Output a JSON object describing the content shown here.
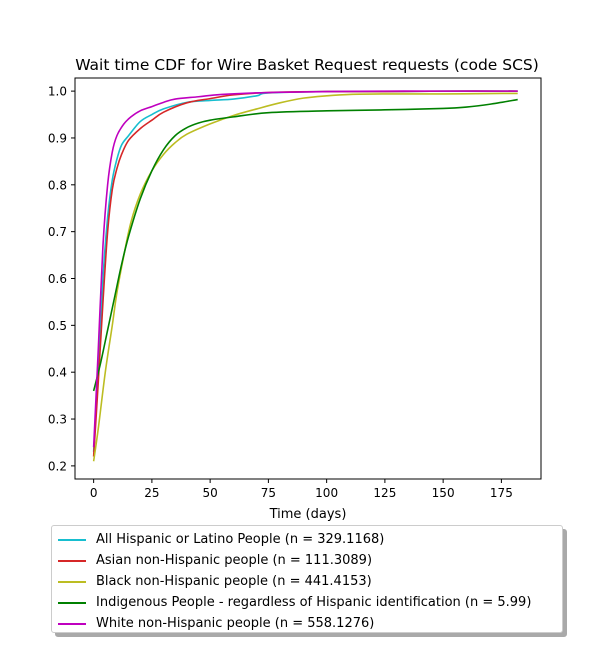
{
  "chart_data": {
    "type": "line",
    "title": "Wait time CDF for Wire Basket Request  requests (code SCS)",
    "xlabel": "Time (days)",
    "ylabel": "",
    "xlim": [
      -8,
      192
    ],
    "ylim": [
      0.172,
      1.028
    ],
    "xticks": [
      0,
      25,
      50,
      75,
      100,
      125,
      150,
      175
    ],
    "yticks": [
      0.2,
      0.3,
      0.4,
      0.5,
      0.6,
      0.7,
      0.8,
      0.9,
      1.0
    ],
    "xtick_labels": [
      "0",
      "25",
      "50",
      "75",
      "100",
      "125",
      "150",
      "175"
    ],
    "ytick_labels": [
      "0.2",
      "0.3",
      "0.4",
      "0.5",
      "0.6",
      "0.7",
      "0.8",
      "0.9",
      "1.0"
    ],
    "grid": false,
    "legend_position": "below plot",
    "series": [
      {
        "name": "All Hispanic or Latino People (n = 329.1168)",
        "color": "#17becf",
        "points": [
          [
            0,
            0.23
          ],
          [
            2,
            0.4
          ],
          [
            4,
            0.6
          ],
          [
            6,
            0.73
          ],
          [
            8,
            0.81
          ],
          [
            10,
            0.855
          ],
          [
            12,
            0.885
          ],
          [
            15,
            0.905
          ],
          [
            20,
            0.935
          ],
          [
            25,
            0.95
          ],
          [
            30,
            0.962
          ],
          [
            40,
            0.976
          ],
          [
            50,
            0.98
          ],
          [
            60,
            0.983
          ],
          [
            70,
            0.99
          ],
          [
            75,
            0.996
          ],
          [
            100,
            0.999
          ],
          [
            125,
            0.999
          ],
          [
            150,
            1.0
          ],
          [
            182,
            1.0
          ]
        ]
      },
      {
        "name": "Asian non-Hispanic people (n = 111.3089)",
        "color": "#d62728",
        "points": [
          [
            0,
            0.22
          ],
          [
            2,
            0.38
          ],
          [
            4,
            0.55
          ],
          [
            6,
            0.7
          ],
          [
            8,
            0.79
          ],
          [
            10,
            0.835
          ],
          [
            12,
            0.865
          ],
          [
            15,
            0.895
          ],
          [
            20,
            0.92
          ],
          [
            25,
            0.938
          ],
          [
            30,
            0.955
          ],
          [
            40,
            0.975
          ],
          [
            50,
            0.984
          ],
          [
            60,
            0.992
          ],
          [
            75,
            0.997
          ],
          [
            100,
            0.999
          ],
          [
            125,
            0.999
          ],
          [
            150,
            1.0
          ],
          [
            182,
            1.0
          ]
        ]
      },
      {
        "name": "Black non-Hispanic people (n = 441.4153)",
        "color": "#bcbd22",
        "points": [
          [
            0,
            0.21
          ],
          [
            2,
            0.28
          ],
          [
            5,
            0.4
          ],
          [
            8,
            0.5
          ],
          [
            10,
            0.57
          ],
          [
            13,
            0.65
          ],
          [
            16,
            0.72
          ],
          [
            20,
            0.78
          ],
          [
            25,
            0.83
          ],
          [
            30,
            0.865
          ],
          [
            35,
            0.89
          ],
          [
            40,
            0.908
          ],
          [
            50,
            0.93
          ],
          [
            60,
            0.948
          ],
          [
            70,
            0.962
          ],
          [
            80,
            0.975
          ],
          [
            90,
            0.985
          ],
          [
            100,
            0.99
          ],
          [
            110,
            0.993
          ],
          [
            125,
            0.994
          ],
          [
            150,
            0.994
          ],
          [
            175,
            0.995
          ],
          [
            182,
            0.995
          ]
        ]
      },
      {
        "name": "Indigenous People - regardless of Hispanic identification (n = 5.99)",
        "color": "#008000",
        "points": [
          [
            0,
            0.36
          ],
          [
            3,
            0.42
          ],
          [
            6,
            0.49
          ],
          [
            9,
            0.56
          ],
          [
            12,
            0.63
          ],
          [
            15,
            0.69
          ],
          [
            20,
            0.77
          ],
          [
            25,
            0.83
          ],
          [
            30,
            0.875
          ],
          [
            35,
            0.905
          ],
          [
            40,
            0.922
          ],
          [
            45,
            0.932
          ],
          [
            50,
            0.938
          ],
          [
            60,
            0.945
          ],
          [
            75,
            0.954
          ],
          [
            100,
            0.958
          ],
          [
            125,
            0.96
          ],
          [
            150,
            0.963
          ],
          [
            160,
            0.966
          ],
          [
            170,
            0.972
          ],
          [
            182,
            0.982
          ]
        ]
      },
      {
        "name": "White non-Hispanic people (n = 558.1276)",
        "color": "#bf00bf",
        "points": [
          [
            0,
            0.24
          ],
          [
            2,
            0.45
          ],
          [
            4,
            0.67
          ],
          [
            6,
            0.8
          ],
          [
            8,
            0.87
          ],
          [
            10,
            0.905
          ],
          [
            13,
            0.93
          ],
          [
            16,
            0.945
          ],
          [
            20,
            0.958
          ],
          [
            25,
            0.967
          ],
          [
            30,
            0.976
          ],
          [
            35,
            0.983
          ],
          [
            45,
            0.988
          ],
          [
            55,
            0.993
          ],
          [
            75,
            0.997
          ],
          [
            100,
            0.999
          ],
          [
            125,
            1.0
          ],
          [
            150,
            1.0
          ],
          [
            182,
            1.0
          ]
        ]
      }
    ]
  }
}
